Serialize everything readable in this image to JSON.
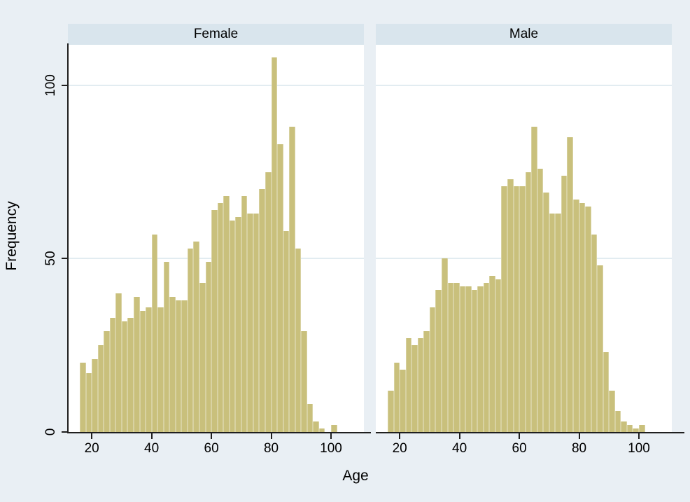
{
  "page": {
    "background_color": "#e9eff4",
    "panel_header_color": "#d9e5ed",
    "plot_background_color": "#ffffff",
    "gridline_color": "#e2ecf1",
    "axis_line_color": "#1f1f1f",
    "text_color": "#000000"
  },
  "chart_data": {
    "type": "bar",
    "subtype": "faceted-histogram",
    "xlabel": "Age",
    "ylabel": "Frequency",
    "x_ticks": [
      20,
      40,
      60,
      80,
      100
    ],
    "y_ticks": [
      0,
      50,
      100
    ],
    "x_domain": [
      12,
      111
    ],
    "y_max": 111.7,
    "bin_width_years": 2,
    "bar_fill": "#c9c07c",
    "bar_outline": "#d8d2a2",
    "legend": "none",
    "grid": "horizontal-only",
    "facets": [
      {
        "title": "Female",
        "bin_start_age": 16,
        "frequencies": [
          20,
          17,
          21,
          25,
          29,
          33,
          40,
          32,
          33,
          39,
          35,
          36,
          57,
          36,
          49,
          39,
          38,
          38,
          53,
          55,
          43,
          49,
          64,
          66,
          68,
          61,
          62,
          68,
          63,
          63,
          70,
          75,
          108,
          83,
          58,
          88,
          53,
          29,
          8,
          3,
          1,
          0,
          2
        ]
      },
      {
        "title": "Male",
        "bin_start_age": 16,
        "frequencies": [
          12,
          20,
          18,
          27,
          25,
          27,
          29,
          36,
          41,
          50,
          43,
          43,
          42,
          42,
          41,
          42,
          43,
          45,
          44,
          71,
          73,
          71,
          71,
          75,
          88,
          76,
          69,
          63,
          63,
          74,
          85,
          67,
          66,
          65,
          57,
          48,
          23,
          12,
          6,
          3,
          2,
          1,
          2
        ]
      }
    ]
  }
}
